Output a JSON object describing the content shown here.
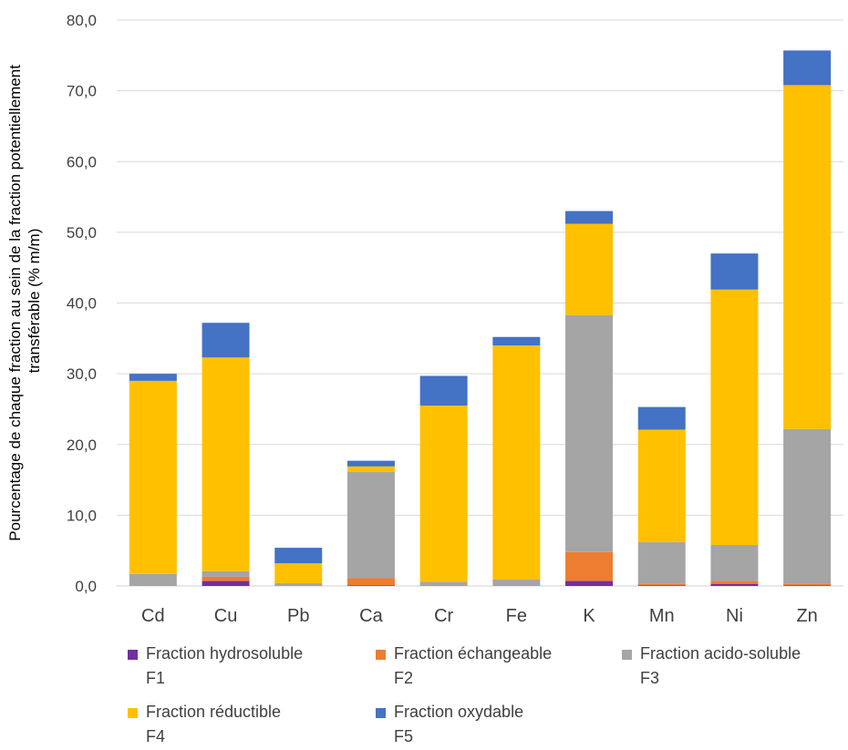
{
  "chart_data": {
    "type": "bar",
    "stacked": true,
    "ylabel": "Pourcentage de chaque fraction au sein de la fraction potentiellement transférable (% m/m)",
    "ylabel_lines": [
      "Pourcentage de chaque fraction au sein de la fraction potentiellement",
      "transférable (% m/m)"
    ],
    "xlabel": "",
    "ylim": [
      0,
      80
    ],
    "ytick_step": 10,
    "ytick_labels": [
      "0,0",
      "10,0",
      "20,0",
      "30,0",
      "40,0",
      "50,0",
      "60,0",
      "70,0",
      "80,0"
    ],
    "grid": true,
    "legend_position": "bottom",
    "categories": [
      "Cd",
      "Cu",
      "Pb",
      "Ca",
      "Cr",
      "Fe",
      "K",
      "Mn",
      "Ni",
      "Zn"
    ],
    "series": [
      {
        "name": "Fraction hydrosoluble F1",
        "label_lines": [
          "Fraction hydrosoluble",
          "F1"
        ],
        "color": "#7030a0",
        "values": [
          0.0,
          0.7,
          0.0,
          0.1,
          0.0,
          0.0,
          0.7,
          0.1,
          0.3,
          0.1
        ]
      },
      {
        "name": "Fraction échangeable F2",
        "label_lines": [
          "Fraction échangeable",
          "F2"
        ],
        "color": "#ed7d31",
        "values": [
          0.1,
          0.6,
          0.1,
          1.0,
          0.1,
          0.1,
          4.1,
          0.2,
          0.4,
          0.2
        ]
      },
      {
        "name": "Fraction acido-soluble F3",
        "label_lines": [
          "Fraction acido-soluble",
          "F3"
        ],
        "color": "#a5a5a5",
        "values": [
          1.6,
          0.8,
          0.3,
          15.0,
          0.5,
          0.8,
          33.5,
          5.9,
          5.1,
          21.9
        ]
      },
      {
        "name": "Fraction réductible F4",
        "label_lines": [
          "Fraction réductible",
          "F4"
        ],
        "color": "#ffc000",
        "values": [
          27.3,
          30.2,
          2.8,
          0.8,
          24.9,
          33.1,
          12.9,
          15.9,
          36.1,
          48.6
        ]
      },
      {
        "name": "Fraction oxydable F5",
        "label_lines": [
          "Fraction oxydable",
          "F5"
        ],
        "color": "#4472c4",
        "values": [
          1.0,
          4.9,
          2.2,
          0.8,
          4.2,
          1.2,
          1.8,
          3.2,
          5.1,
          4.9
        ]
      }
    ]
  }
}
